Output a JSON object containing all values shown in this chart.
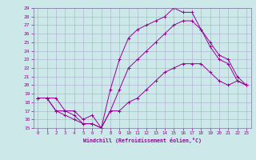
{
  "title": "",
  "xlabel": "Windchill (Refroidissement éolien,°C)",
  "ylabel": "",
  "background_color": "#cce8e8",
  "line_color": "#990099",
  "grid_color": "#aaaacc",
  "xmin": 0,
  "xmax": 23,
  "ymin": 15,
  "ymax": 29,
  "line1_x": [
    0,
    1,
    2,
    3,
    4,
    5,
    6,
    7,
    8,
    9,
    10,
    11,
    12,
    13,
    14,
    15,
    16,
    17,
    18,
    19,
    20,
    21,
    22,
    23
  ],
  "line1_y": [
    18.5,
    18.5,
    18.5,
    17.0,
    16.5,
    15.5,
    15.5,
    15.0,
    17.0,
    17.0,
    18.0,
    18.5,
    19.5,
    20.5,
    21.5,
    22.0,
    22.5,
    22.5,
    22.5,
    21.5,
    20.5,
    20.0,
    20.5,
    20.0
  ],
  "line2_x": [
    0,
    1,
    2,
    3,
    4,
    5,
    6,
    7,
    8,
    9,
    10,
    11,
    12,
    13,
    14,
    15,
    16,
    17,
    18,
    19,
    20,
    21,
    22,
    23
  ],
  "line2_y": [
    18.5,
    18.5,
    17.0,
    17.0,
    17.0,
    16.0,
    16.5,
    15.0,
    19.5,
    23.0,
    25.5,
    26.5,
    27.0,
    27.5,
    28.0,
    29.0,
    28.5,
    28.5,
    26.5,
    25.0,
    23.5,
    23.0,
    21.0,
    20.0
  ],
  "line3_x": [
    0,
    1,
    2,
    3,
    4,
    5,
    6,
    7,
    8,
    9,
    10,
    11,
    12,
    13,
    14,
    15,
    16,
    17,
    18,
    19,
    20,
    21,
    22,
    23
  ],
  "line3_y": [
    18.5,
    18.5,
    17.0,
    16.5,
    16.0,
    15.5,
    15.5,
    15.0,
    17.0,
    19.5,
    22.0,
    23.0,
    24.0,
    25.0,
    26.0,
    27.0,
    27.5,
    27.5,
    26.5,
    24.5,
    23.0,
    22.5,
    20.5,
    20.0
  ]
}
